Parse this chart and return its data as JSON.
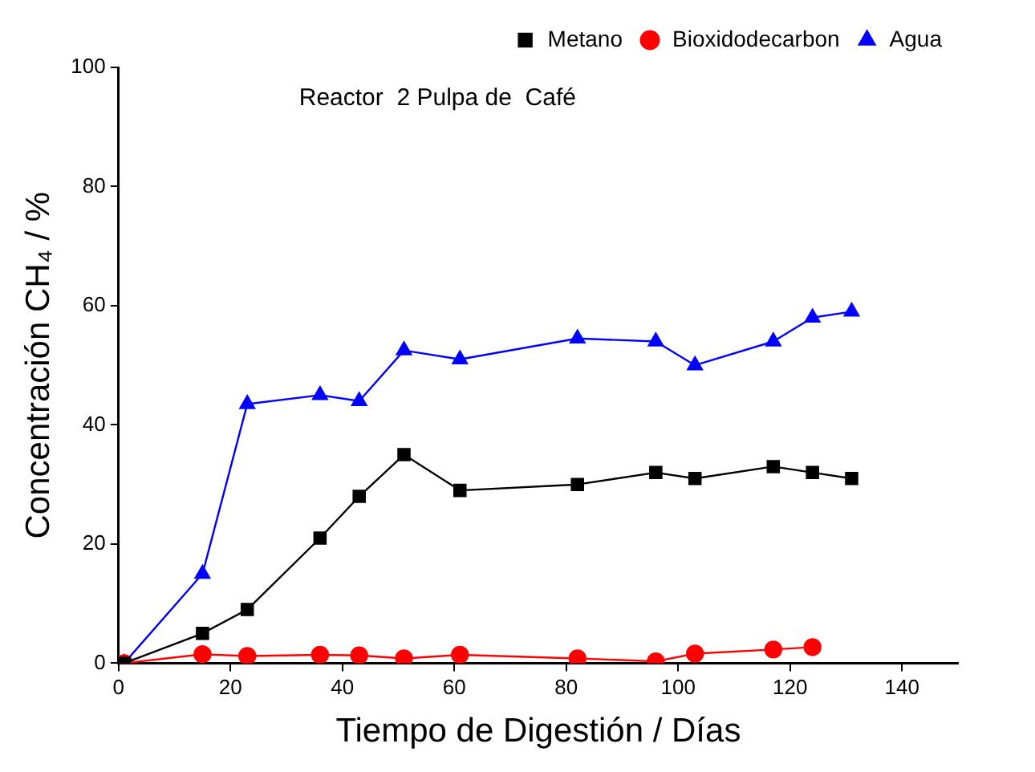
{
  "chart_data": {
    "type": "line",
    "title": "Reactor  2 Pulpa de  Café",
    "xlabel": "Tiempo de Digestión / Días",
    "ylabel": "Concentración CH₄ / %",
    "xlim": [
      0,
      150
    ],
    "xticks": [
      0,
      20,
      40,
      60,
      80,
      100,
      120,
      140
    ],
    "ylim": [
      0,
      100
    ],
    "yticks": [
      0,
      20,
      40,
      60,
      80,
      100
    ],
    "grid": false,
    "legend": "top right",
    "series": [
      {
        "name": "Metano",
        "color": "#000000",
        "marker": "square",
        "x": [
          1,
          15,
          23,
          36,
          43,
          51,
          61,
          82,
          96,
          103,
          117,
          124,
          131
        ],
        "values": [
          0,
          5,
          9,
          21,
          28,
          35,
          29,
          30,
          32,
          31,
          33,
          32,
          31
        ]
      },
      {
        "name": "Bioxidodecarbon",
        "color": "#ff0000",
        "marker": "circle",
        "x": [
          1,
          15,
          23,
          36,
          43,
          51,
          61,
          82,
          96,
          103,
          117,
          124
        ],
        "values": [
          0,
          1.5,
          1.2,
          1.4,
          1.3,
          0.8,
          1.4,
          0.8,
          0.3,
          1.6,
          2.3,
          2.7
        ]
      },
      {
        "name": "Agua",
        "color": "#0000ff",
        "marker": "triangle",
        "x": [
          1,
          15,
          23,
          36,
          43,
          51,
          61,
          82,
          96,
          103,
          117,
          124,
          131
        ],
        "values": [
          0,
          15,
          43.5,
          45,
          44,
          52.5,
          51,
          54.5,
          54,
          50,
          54,
          58,
          59
        ]
      }
    ]
  }
}
